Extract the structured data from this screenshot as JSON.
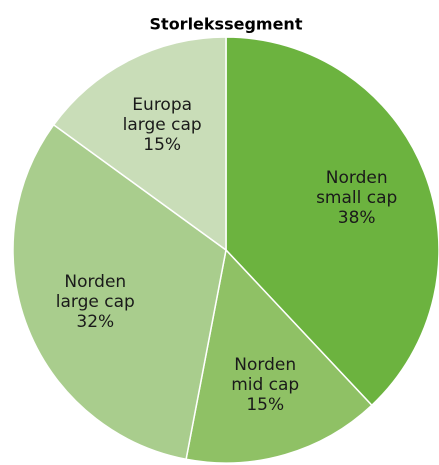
{
  "chart_data": {
    "type": "pie",
    "title": "Storlekssegment",
    "categories": [
      "Norden small cap",
      "Norden mid cap",
      "Norden large cap",
      "Europa large cap"
    ],
    "values": [
      38,
      15,
      32,
      15
    ],
    "value_labels": [
      "38%",
      "15%",
      "32%",
      "15%"
    ],
    "colors": [
      "#6cb33f",
      "#8fc165",
      "#a9cd8d",
      "#c9ddb8"
    ]
  }
}
